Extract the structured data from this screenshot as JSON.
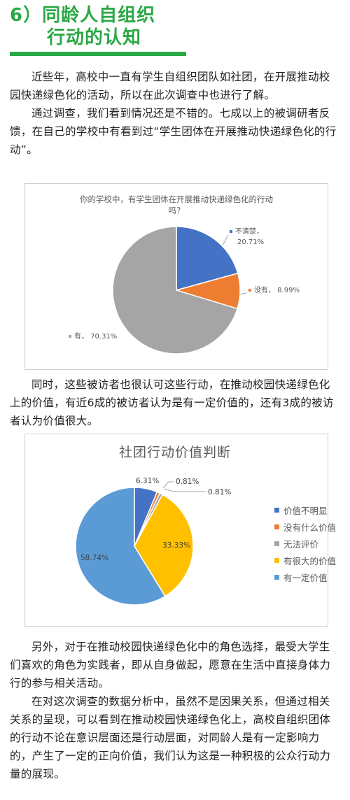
{
  "section": {
    "line1": "6）同龄人自组织",
    "line2": "行动的认知"
  },
  "paragraphs1": [
    "近些年，高校中一直有学生自组织团队如社团，在开展推动校园快递绿色化的活动，所以在此次调查中也进行了解。",
    "通过调查，我们看到情况还是不错的。七成以上的被调研者反馈，在自己的学校中有看到过“学生团体在开展推动快递绿色化的行动”。"
  ],
  "paragraph2": "同时，这些被访者也很认可这些行动，在推动校园快递绿色化上的价值，有近6成的被访者认为是有一定价值的，还有3成的被访者认为价值很大。",
  "paragraphs3": [
    "另外，对于在推动校园快递绿色化中的角色选择，最受大学生们喜欢的角色为实践者，即从自身做起，愿意在生活中直接身体力行的参与相关活动。",
    "在对这次调查的数据分析中，虽然不是因果关系，但通过相关关系的呈现，可以看到在推动校园快递绿色化上，高校自组织团体的行动不论在意识层面还是行动层面，对同龄人是有一定影响力的，产生了一定的正向价值，我们认为这是一种积极的公众行动力量的展现。"
  ],
  "chart_data": [
    {
      "type": "pie",
      "title": "你的学校中，有学生团体在开展推动快递绿色化的行动吗？",
      "title_lines": [
        "你的学校中，有学生团体在开展推动快递绿色化的行动",
        "吗？"
      ],
      "categories": [
        "不清楚",
        "没有",
        "有"
      ],
      "values": [
        20.71,
        8.99,
        70.31
      ],
      "value_labels": [
        "20.71%",
        "8.99%",
        "70.31%"
      ],
      "label_texts": [
        "不清楚，",
        "没有，",
        "有，"
      ],
      "colors": [
        "#4472c4",
        "#ed7d31",
        "#a5a5a5"
      ],
      "legend": "none"
    },
    {
      "type": "pie",
      "title": "社团行动价值判断",
      "categories": [
        "价值不明显",
        "没有什么价值",
        "无法评价",
        "有很大的价值",
        "有一定价值"
      ],
      "values": [
        6.31,
        0.81,
        0.81,
        33.33,
        58.74
      ],
      "value_labels": [
        "6.31%",
        "0.81%",
        "0.81%",
        "33.33%",
        "58.74%"
      ],
      "colors": [
        "#4472c4",
        "#ed7d31",
        "#a5a5a5",
        "#ffc000",
        "#5b9bd5"
      ],
      "legend": "right"
    }
  ]
}
